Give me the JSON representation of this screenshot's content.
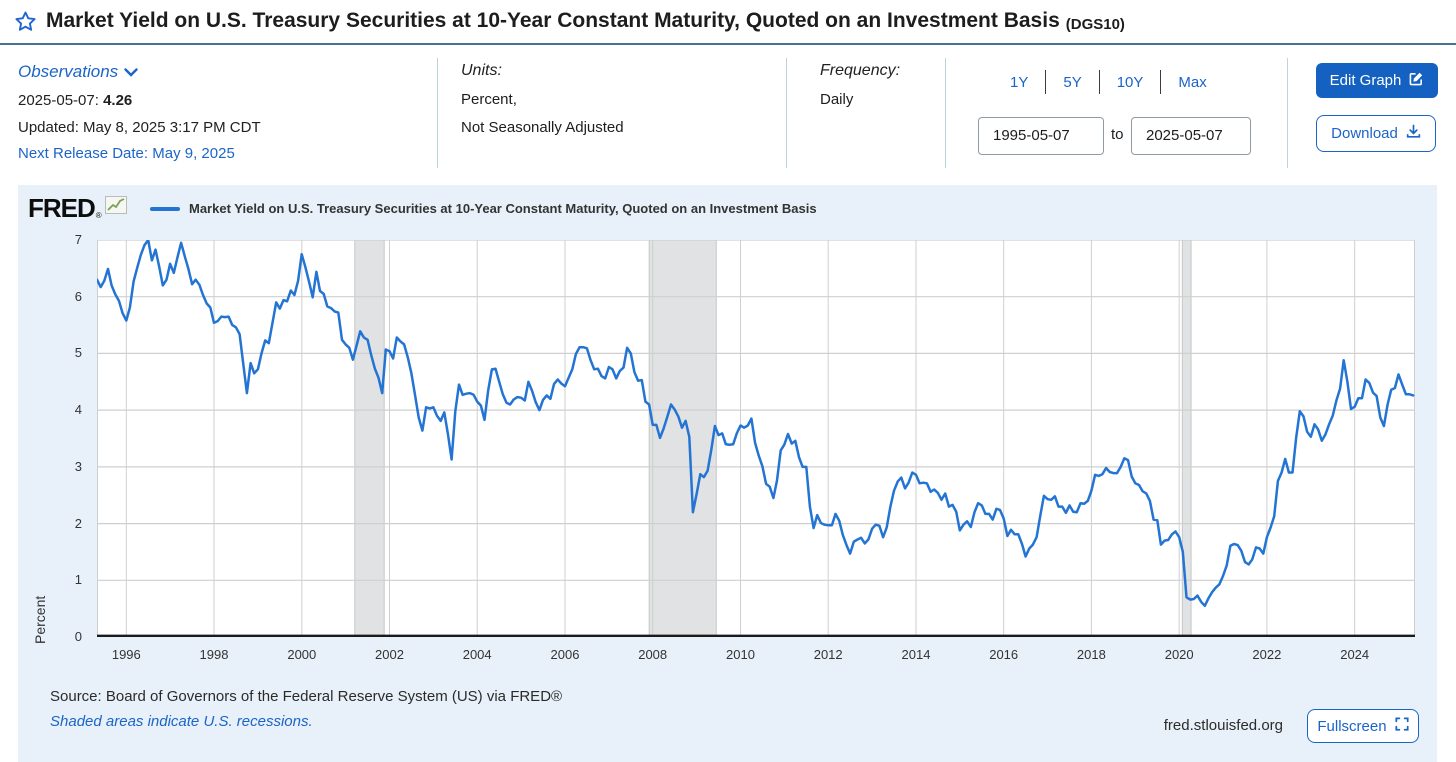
{
  "header": {
    "title": "Market Yield on U.S. Treasury Securities at 10-Year Constant Maturity, Quoted on an Investment Basis",
    "series_id": "(DGS10)"
  },
  "observations": {
    "label": "Observations",
    "date_label": "2025-05-07:",
    "value": "4.26",
    "updated": "Updated: May 8, 2025 3:17 PM CDT",
    "next_release": "Next Release Date: May 9, 2025"
  },
  "units": {
    "label": "Units:",
    "line1": "Percent,",
    "line2": "Not Seasonally Adjusted"
  },
  "frequency": {
    "label": "Frequency:",
    "value": "Daily"
  },
  "range_controls": {
    "options": [
      "1Y",
      "5Y",
      "10Y",
      "Max"
    ],
    "from": "1995-05-07",
    "to_label": "to",
    "to": "2025-05-07"
  },
  "actions": {
    "edit_graph": "Edit Graph",
    "download": "Download"
  },
  "chart": {
    "brand": "FRED",
    "legend_label": "Market Yield on U.S. Treasury Securities at 10-Year Constant Maturity, Quoted on an Investment Basis",
    "y_axis_label": "Percent"
  },
  "footer": {
    "source": "Source: Board of Governors of the Federal Reserve System (US) via FRED®",
    "recession_note": "Shaded areas indicate U.S. recessions.",
    "site": "fred.stlouisfed.org",
    "fullscreen": "Fullscreen"
  },
  "colors": {
    "line": "#2374d3",
    "accent_link": "#1b64c9",
    "button_fill": "#1461c2",
    "recession_fill": "#e0e2e3",
    "recession_edge": "#c6c8c9",
    "grid": "#cfcfcf",
    "axis": "#1a1a1a",
    "panel_bg": "#e8f1f9"
  },
  "chart_data": {
    "type": "line",
    "title": "Market Yield on U.S. Treasury Securities at 10-Year Constant Maturity, Quoted on an Investment Basis",
    "xlabel": "",
    "ylabel": "Percent",
    "ylim": [
      0,
      7
    ],
    "yticks": [
      0,
      1,
      2,
      3,
      4,
      5,
      6,
      7
    ],
    "xlim": [
      1995.333,
      2025.375
    ],
    "xticks": [
      1996,
      1998,
      2000,
      2002,
      2004,
      2006,
      2008,
      2010,
      2012,
      2014,
      2016,
      2018,
      2020,
      2022,
      2024
    ],
    "grid": true,
    "legend_position": "top-left",
    "recessions": [
      [
        2001.21,
        2001.88
      ],
      [
        2007.92,
        2009.45
      ],
      [
        2020.07,
        2020.27
      ]
    ],
    "series": [
      {
        "name": "DGS10 (percent, monthly path of daily series)",
        "x_start_decimal_year": 1995.3333,
        "x_step_years": 0.0833333,
        "values": [
          6.3,
          6.17,
          6.28,
          6.49,
          6.2,
          6.04,
          5.93,
          5.71,
          5.58,
          5.81,
          6.27,
          6.51,
          6.74,
          6.91,
          7.0,
          6.64,
          6.83,
          6.53,
          6.2,
          6.3,
          6.58,
          6.42,
          6.69,
          6.95,
          6.71,
          6.49,
          6.22,
          6.3,
          6.21,
          6.03,
          5.88,
          5.81,
          5.54,
          5.57,
          5.65,
          5.64,
          5.65,
          5.5,
          5.46,
          5.34,
          4.81,
          4.3,
          4.83,
          4.65,
          4.72,
          5.0,
          5.23,
          5.18,
          5.54,
          5.9,
          5.79,
          5.94,
          5.92,
          6.11,
          6.03,
          6.28,
          6.75,
          6.52,
          6.26,
          5.99,
          6.44,
          6.1,
          6.05,
          5.83,
          5.8,
          5.74,
          5.72,
          5.24,
          5.16,
          5.1,
          4.89,
          5.14,
          5.39,
          5.28,
          5.24,
          4.97,
          4.73,
          4.57,
          4.3,
          5.07,
          5.04,
          4.91,
          5.28,
          5.21,
          5.16,
          4.93,
          4.65,
          4.26,
          3.87,
          3.64,
          4.05,
          4.03,
          4.05,
          3.9,
          3.81,
          3.96,
          3.57,
          3.13,
          3.98,
          4.45,
          4.27,
          4.29,
          4.3,
          4.27,
          4.15,
          4.08,
          3.83,
          4.35,
          4.72,
          4.73,
          4.5,
          4.28,
          4.13,
          4.1,
          4.19,
          4.23,
          4.22,
          4.17,
          4.5,
          4.34,
          4.14,
          4.0,
          4.18,
          4.26,
          4.2,
          4.46,
          4.54,
          4.47,
          4.42,
          4.57,
          4.72,
          4.99,
          5.11,
          5.11,
          5.09,
          4.88,
          4.72,
          4.73,
          4.6,
          4.56,
          4.76,
          4.72,
          4.56,
          4.69,
          4.75,
          5.1,
          5.0,
          4.67,
          4.52,
          4.53,
          4.15,
          4.1,
          3.74,
          3.74,
          3.51,
          3.68,
          3.88,
          4.1,
          4.01,
          3.89,
          3.69,
          3.81,
          3.53,
          2.2,
          2.52,
          2.87,
          2.82,
          2.93,
          3.29,
          3.72,
          3.56,
          3.59,
          3.4,
          3.39,
          3.4,
          3.59,
          3.73,
          3.69,
          3.73,
          3.85,
          3.42,
          3.2,
          3.01,
          2.7,
          2.65,
          2.45,
          2.76,
          3.29,
          3.39,
          3.58,
          3.41,
          3.46,
          3.17,
          3.0,
          3.0,
          2.3,
          1.92,
          2.15,
          2.01,
          1.98,
          1.97,
          1.97,
          2.17,
          2.05,
          1.8,
          1.62,
          1.47,
          1.68,
          1.72,
          1.75,
          1.65,
          1.72,
          1.91,
          1.98,
          1.96,
          1.76,
          1.93,
          2.3,
          2.58,
          2.74,
          2.81,
          2.62,
          2.72,
          2.9,
          2.86,
          2.71,
          2.72,
          2.71,
          2.56,
          2.6,
          2.54,
          2.42,
          2.53,
          2.3,
          2.33,
          2.21,
          1.88,
          1.98,
          2.04,
          1.94,
          2.2,
          2.36,
          2.32,
          2.17,
          2.17,
          2.07,
          2.26,
          2.24,
          2.09,
          1.78,
          1.89,
          1.81,
          1.81,
          1.64,
          1.42,
          1.56,
          1.63,
          1.76,
          2.14,
          2.49,
          2.43,
          2.42,
          2.48,
          2.3,
          2.3,
          2.19,
          2.32,
          2.21,
          2.2,
          2.36,
          2.35,
          2.4,
          2.58,
          2.86,
          2.84,
          2.87,
          2.98,
          2.91,
          2.89,
          2.89,
          3.0,
          3.15,
          3.12,
          2.83,
          2.71,
          2.68,
          2.57,
          2.53,
          2.4,
          2.07,
          2.06,
          1.63,
          1.7,
          1.71,
          1.81,
          1.86,
          1.76,
          1.5,
          0.7,
          0.66,
          0.67,
          0.73,
          0.62,
          0.55,
          0.68,
          0.79,
          0.87,
          0.93,
          1.08,
          1.26,
          1.61,
          1.64,
          1.62,
          1.52,
          1.32,
          1.28,
          1.37,
          1.58,
          1.56,
          1.47,
          1.76,
          1.93,
          2.13,
          2.75,
          2.9,
          3.14,
          2.9,
          2.9,
          3.52,
          3.98,
          3.89,
          3.62,
          3.53,
          3.75,
          3.66,
          3.46,
          3.57,
          3.75,
          3.9,
          4.17,
          4.38,
          4.88,
          4.5,
          4.02,
          4.06,
          4.21,
          4.21,
          4.54,
          4.48,
          4.31,
          4.25,
          3.87,
          3.72,
          4.1,
          4.36,
          4.39,
          4.63,
          4.45,
          4.28,
          4.28,
          4.26
        ]
      }
    ]
  }
}
